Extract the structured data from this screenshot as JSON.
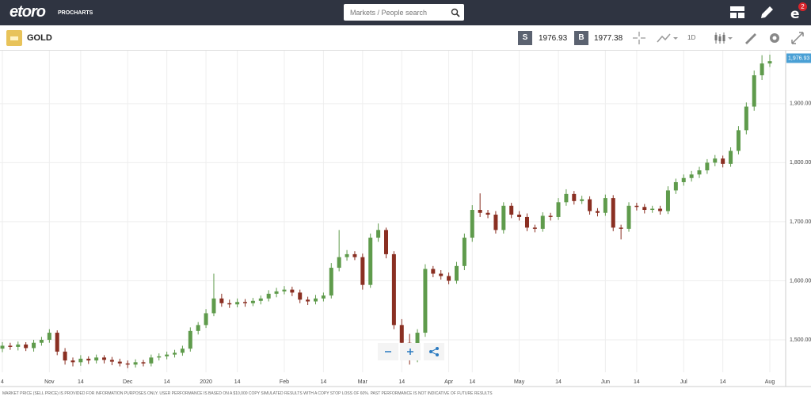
{
  "header": {
    "logo": "etoro",
    "logo_sub": "PROCHARTS",
    "search_placeholder": "Markets / People search",
    "notifications": 2
  },
  "toolbar": {
    "instrument": "GOLD",
    "sell_label": "S",
    "sell_price": 1976.93,
    "buy_label": "B",
    "buy_price": 1977.38,
    "timeframe": "1D"
  },
  "chart_data": {
    "type": "candlestick",
    "categories": [
      "4",
      null,
      null,
      null,
      null,
      null,
      "Nov",
      null,
      null,
      null,
      "14",
      null,
      null,
      null,
      null,
      null,
      "Dec",
      null,
      null,
      null,
      null,
      "14",
      null,
      null,
      null,
      null,
      "2020",
      null,
      null,
      null,
      "14",
      null,
      null,
      null,
      null,
      null,
      "Feb",
      null,
      null,
      null,
      null,
      "14",
      null,
      null,
      null,
      null,
      "Mar",
      null,
      null,
      null,
      null,
      "14",
      null,
      null,
      null,
      null,
      null,
      "Apr",
      null,
      null,
      "14",
      null,
      null,
      null,
      null,
      null,
      "May",
      null,
      null,
      null,
      null,
      "14",
      null,
      null,
      null,
      null,
      null,
      "Jun",
      null,
      null,
      null,
      "14",
      null,
      null,
      null,
      null,
      null,
      "Jul",
      null,
      null,
      null,
      null,
      "14",
      null,
      null,
      null,
      null,
      null,
      "Aug"
    ],
    "open": [
      1485,
      1490,
      1488,
      1492,
      1486,
      1495,
      1500,
      1512,
      1480,
      1465,
      1462,
      1468,
      1465,
      1470,
      1466,
      1463,
      1460,
      1458,
      1462,
      1460,
      1470,
      1472,
      1475,
      1478,
      1485,
      1515,
      1525,
      1545,
      1570,
      1562,
      1560,
      1564,
      1562,
      1566,
      1570,
      1578,
      1582,
      1585,
      1580,
      1568,
      1565,
      1570,
      1575,
      1622,
      1640,
      1645,
      1640,
      1593,
      1673,
      1686,
      1645,
      1525,
      1495,
      1485,
      1512,
      1620,
      1612,
      1608,
      1600,
      1625,
      1673,
      1720,
      1715,
      1712,
      1686,
      1727,
      1712,
      1708,
      1690,
      1688,
      1710,
      1708,
      1733,
      1747,
      1735,
      1738,
      1718,
      1715,
      1740,
      1690,
      1688,
      1727,
      1725,
      1720,
      1722,
      1718,
      1753,
      1767,
      1774,
      1780,
      1787,
      1800,
      1807,
      1798,
      1820,
      1855,
      1895,
      1948,
      1968
    ],
    "high": [
      1496,
      1495,
      1497,
      1496,
      1500,
      1505,
      1518,
      1516,
      1486,
      1470,
      1474,
      1472,
      1475,
      1474,
      1471,
      1468,
      1465,
      1467,
      1466,
      1475,
      1477,
      1480,
      1483,
      1490,
      1521,
      1530,
      1552,
      1612,
      1578,
      1568,
      1570,
      1569,
      1571,
      1575,
      1584,
      1588,
      1591,
      1590,
      1585,
      1573,
      1576,
      1580,
      1630,
      1686,
      1652,
      1650,
      1646,
      1680,
      1697,
      1690,
      1650,
      1535,
      1510,
      1518,
      1628,
      1625,
      1618,
      1614,
      1632,
      1680,
      1728,
      1748,
      1720,
      1718,
      1733,
      1732,
      1718,
      1714,
      1695,
      1716,
      1715,
      1740,
      1755,
      1752,
      1744,
      1743,
      1723,
      1746,
      1745,
      1695,
      1733,
      1732,
      1730,
      1727,
      1727,
      1760,
      1773,
      1780,
      1786,
      1793,
      1806,
      1813,
      1812,
      1826,
      1862,
      1902,
      1956,
      1982,
      1983
    ],
    "low": [
      1479,
      1483,
      1482,
      1481,
      1480,
      1490,
      1495,
      1474,
      1458,
      1455,
      1456,
      1459,
      1460,
      1460,
      1457,
      1455,
      1452,
      1453,
      1455,
      1455,
      1465,
      1467,
      1470,
      1473,
      1480,
      1509,
      1520,
      1540,
      1556,
      1554,
      1555,
      1556,
      1557,
      1560,
      1565,
      1572,
      1577,
      1574,
      1562,
      1559,
      1560,
      1565,
      1570,
      1616,
      1634,
      1635,
      1585,
      1588,
      1666,
      1638,
      1518,
      1480,
      1458,
      1462,
      1505,
      1606,
      1602,
      1594,
      1595,
      1618,
      1666,
      1708,
      1706,
      1680,
      1680,
      1706,
      1702,
      1684,
      1682,
      1683,
      1702,
      1703,
      1727,
      1729,
      1730,
      1712,
      1709,
      1710,
      1684,
      1670,
      1683,
      1719,
      1714,
      1715,
      1712,
      1713,
      1747,
      1761,
      1768,
      1774,
      1781,
      1794,
      1792,
      1793,
      1814,
      1848,
      1888,
      1940,
      1962
    ],
    "close": [
      1490,
      1488,
      1492,
      1486,
      1495,
      1500,
      1512,
      1480,
      1465,
      1462,
      1468,
      1465,
      1470,
      1466,
      1463,
      1460,
      1458,
      1462,
      1460,
      1470,
      1472,
      1475,
      1478,
      1485,
      1515,
      1525,
      1545,
      1570,
      1562,
      1560,
      1564,
      1562,
      1566,
      1570,
      1578,
      1582,
      1585,
      1580,
      1568,
      1565,
      1570,
      1575,
      1622,
      1640,
      1645,
      1640,
      1593,
      1673,
      1686,
      1645,
      1525,
      1495,
      1485,
      1512,
      1620,
      1612,
      1608,
      1600,
      1625,
      1673,
      1720,
      1715,
      1712,
      1686,
      1727,
      1712,
      1708,
      1690,
      1688,
      1710,
      1708,
      1733,
      1747,
      1735,
      1738,
      1718,
      1715,
      1740,
      1690,
      1688,
      1727,
      1725,
      1720,
      1722,
      1718,
      1753,
      1767,
      1774,
      1780,
      1787,
      1800,
      1807,
      1798,
      1820,
      1855,
      1895,
      1948,
      1968,
      1972
    ],
    "up_color": "#5f9b4c",
    "down_color": "#8a2f22",
    "ylim": [
      1445,
      1991
    ],
    "yticks": [
      {
        "value": 1500,
        "label": "1,500.00"
      },
      {
        "value": 1600,
        "label": "1,600.00"
      },
      {
        "value": 1700,
        "label": "1,700.00"
      },
      {
        "value": 1800,
        "label": "1,800.00"
      },
      {
        "value": 1900,
        "label": "1,900.00"
      }
    ],
    "current_price": {
      "value": 1976.93,
      "label": "1,976.93"
    },
    "grid": true
  },
  "footer": {
    "disclaimer": "MARKET PRICE (SELL PRICE) IS PROVIDED FOR INFORMATION PURPOSES ONLY. USER PERFORMANCE IS BASED ON A $10,000 COPY SIMULATED RESULTS WITH A COPY STOP LOSS OF 60%. PAST PERFORMANCE IS NOT INDICATIVE OF FUTURE RESULTS"
  }
}
